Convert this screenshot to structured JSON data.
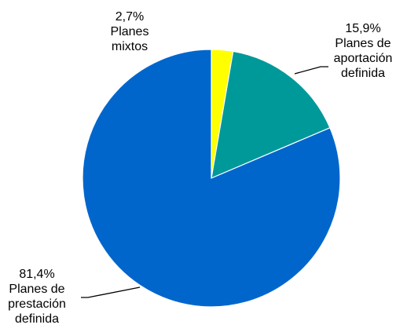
{
  "chart_data": {
    "type": "pie",
    "title": "",
    "slices": [
      {
        "label_lines": [
          "2,7%",
          "Planes",
          "mixtos"
        ],
        "value": 2.7,
        "color": "#FFFF00"
      },
      {
        "label_lines": [
          "15,9%",
          "Planes de",
          "aportación",
          "definida"
        ],
        "value": 15.9,
        "color": "#009999"
      },
      {
        "label_lines": [
          "81,4%",
          "Planes de",
          "prestación",
          "definida"
        ],
        "value": 81.4,
        "color": "#0066CC"
      }
    ],
    "start_angle_deg": 0,
    "direction": "clockwise"
  }
}
